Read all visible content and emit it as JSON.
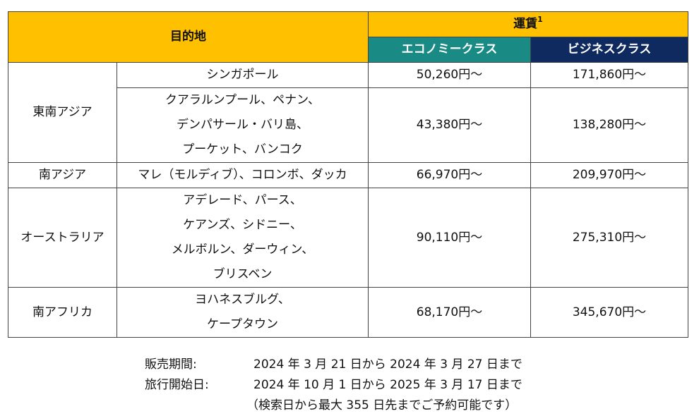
{
  "table": {
    "header": {
      "destination": "目的地",
      "fare": "運賃",
      "fare_sup": "1",
      "economy": "エコノミークラス",
      "business": "ビジネスクラス"
    },
    "rows": [
      {
        "region": "東南アジア",
        "entries": [
          {
            "destinations": [
              "シンガポール"
            ],
            "economy": "50,260円～",
            "business": "171,860円～"
          },
          {
            "destinations": [
              "クアラルンプール、ペナン、",
              "デンパサール・バリ島、",
              "プーケット、バンコク"
            ],
            "economy": "43,380円～",
            "business": "138,280円～"
          }
        ]
      },
      {
        "region": "南アジア",
        "entries": [
          {
            "destinations": [
              "マレ（モルディブ）、コロンボ、ダッカ"
            ],
            "economy": "66,970円～",
            "business": "209,970円～"
          }
        ]
      },
      {
        "region": "オーストラリア",
        "entries": [
          {
            "destinations": [
              "アデレード、パース、",
              "ケアンズ、シドニー、",
              "メルボルン、ダーウィン、",
              "ブリスベン"
            ],
            "economy": "90,110円～",
            "business": "275,310円～"
          }
        ]
      },
      {
        "region": "南アフリカ",
        "entries": [
          {
            "destinations": [
              "ヨハネスブルグ、",
              "ケープタウン"
            ],
            "economy": "68,170円～",
            "business": "345,670円～"
          }
        ]
      }
    ]
  },
  "notes": {
    "sales_label": "販売期間:",
    "sales_value": "2024 年 3 月 21 日から 2024 年 3 月 27 日まで",
    "travel_label": "旅行開始日:",
    "travel_value": "2024 年 10 月 1 日から 2025 年 3 月 17 日まで",
    "search_note": "（検索日から最大 355 日先までご予約可能です）"
  }
}
